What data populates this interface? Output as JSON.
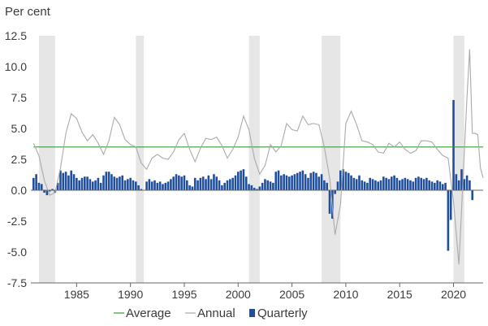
{
  "chart_data": {
    "type": "bar",
    "unit_label": "Per cent",
    "xlim": [
      1980.75,
      2022.75
    ],
    "ylim": [
      -7.5,
      12.5
    ],
    "y_ticks": [
      12.5,
      10.0,
      7.5,
      5.0,
      2.5,
      0.0,
      -2.5,
      -5.0,
      -7.5
    ],
    "y_tick_labels": [
      "12.5",
      "10.0",
      "7.5",
      "5.0",
      "2.5",
      "0.0",
      "-2.5",
      "-5.0",
      "-7.5"
    ],
    "x_ticks": [
      1985,
      1990,
      1995,
      2000,
      2005,
      2010,
      2015,
      2020
    ],
    "x_tick_labels": [
      "1985",
      "1990",
      "1995",
      "2000",
      "2005",
      "2010",
      "2015",
      "2020"
    ],
    "grid": false,
    "legend_position": "bottom",
    "colors": {
      "average": "#3a9a3a",
      "annual": "#aaaaaa",
      "quarterly": "#1f4e9c",
      "recession": "#e6e6e6",
      "axis": "#666666"
    },
    "recessions": [
      [
        1981.5,
        1983.0
      ],
      [
        1990.5,
        1991.25
      ],
      [
        2001.0,
        2002.0
      ],
      [
        2007.75,
        2009.5
      ],
      [
        2020.0,
        2021.0
      ]
    ],
    "series": [
      {
        "name": "Average",
        "type": "hline",
        "value": 3.5
      },
      {
        "name": "Annual",
        "type": "line",
        "points": [
          [
            1981.0,
            3.8
          ],
          [
            1981.5,
            2.8
          ],
          [
            1982.0,
            0.8
          ],
          [
            1982.5,
            -0.4
          ],
          [
            1983.0,
            -0.2
          ],
          [
            1983.5,
            1.8
          ],
          [
            1984.0,
            4.6
          ],
          [
            1984.5,
            6.2
          ],
          [
            1985.0,
            5.8
          ],
          [
            1985.5,
            4.7
          ],
          [
            1986.0,
            4.0
          ],
          [
            1986.5,
            4.5
          ],
          [
            1987.0,
            3.8
          ],
          [
            1987.5,
            2.9
          ],
          [
            1988.0,
            4.0
          ],
          [
            1988.5,
            5.9
          ],
          [
            1989.0,
            5.3
          ],
          [
            1989.5,
            4.1
          ],
          [
            1990.0,
            3.7
          ],
          [
            1990.5,
            3.5
          ],
          [
            1991.0,
            2.2
          ],
          [
            1991.5,
            1.7
          ],
          [
            1992.0,
            2.6
          ],
          [
            1992.5,
            2.9
          ],
          [
            1993.0,
            2.6
          ],
          [
            1993.5,
            2.5
          ],
          [
            1994.0,
            3.1
          ],
          [
            1994.5,
            4.1
          ],
          [
            1995.0,
            4.6
          ],
          [
            1995.5,
            3.3
          ],
          [
            1996.0,
            2.3
          ],
          [
            1996.5,
            3.4
          ],
          [
            1997.0,
            4.2
          ],
          [
            1997.5,
            4.1
          ],
          [
            1998.0,
            4.3
          ],
          [
            1998.5,
            3.6
          ],
          [
            1999.0,
            2.6
          ],
          [
            1999.5,
            3.3
          ],
          [
            2000.0,
            4.3
          ],
          [
            2000.5,
            6.0
          ],
          [
            2001.0,
            4.9
          ],
          [
            2001.5,
            2.6
          ],
          [
            2002.0,
            1.3
          ],
          [
            2002.5,
            2.0
          ],
          [
            2003.0,
            3.7
          ],
          [
            2003.5,
            3.1
          ],
          [
            2004.0,
            3.6
          ],
          [
            2004.5,
            5.4
          ],
          [
            2005.0,
            4.9
          ],
          [
            2005.5,
            4.8
          ],
          [
            2006.0,
            6.0
          ],
          [
            2006.5,
            5.3
          ],
          [
            2007.0,
            5.4
          ],
          [
            2007.5,
            5.3
          ],
          [
            2008.0,
            3.5
          ],
          [
            2008.5,
            1.0
          ],
          [
            2009.0,
            -3.6
          ],
          [
            2009.5,
            -1.2
          ],
          [
            2010.0,
            5.4
          ],
          [
            2010.5,
            6.4
          ],
          [
            2011.0,
            5.3
          ],
          [
            2011.5,
            4.0
          ],
          [
            2012.0,
            3.9
          ],
          [
            2012.5,
            3.7
          ],
          [
            2013.0,
            3.1
          ],
          [
            2013.5,
            3.0
          ],
          [
            2014.0,
            3.8
          ],
          [
            2014.5,
            3.5
          ],
          [
            2015.0,
            3.9
          ],
          [
            2015.5,
            3.3
          ],
          [
            2016.0,
            3.0
          ],
          [
            2016.5,
            3.2
          ],
          [
            2017.0,
            4.0
          ],
          [
            2017.5,
            4.0
          ],
          [
            2018.0,
            3.9
          ],
          [
            2018.5,
            3.3
          ],
          [
            2019.0,
            2.8
          ],
          [
            2019.5,
            2.6
          ],
          [
            2020.0,
            -0.9
          ],
          [
            2020.5,
            -6.0
          ],
          [
            2021.0,
            3.0
          ],
          [
            2021.25,
            7.5
          ],
          [
            2021.5,
            11.4
          ],
          [
            2021.75,
            4.6
          ],
          [
            2022.0,
            4.6
          ],
          [
            2022.25,
            4.5
          ],
          [
            2022.5,
            1.8
          ],
          [
            2022.75,
            1.0
          ]
        ]
      },
      {
        "name": "Quarterly",
        "type": "bar",
        "start": 1981.0,
        "step": 0.25,
        "values": [
          1.0,
          1.3,
          0.6,
          0.5,
          -0.2,
          -0.4,
          -0.1,
          0.1,
          -0.2,
          0.6,
          1.6,
          1.4,
          1.5,
          1.2,
          1.6,
          1.3,
          1.0,
          0.8,
          1.0,
          1.1,
          1.1,
          0.9,
          0.7,
          0.8,
          1.0,
          0.6,
          1.2,
          1.5,
          1.5,
          1.3,
          1.1,
          1.0,
          1.1,
          1.2,
          0.8,
          0.9,
          1.0,
          0.8,
          0.7,
          0.4,
          0.1,
          0.0,
          0.7,
          0.9,
          0.7,
          0.8,
          0.6,
          0.7,
          0.5,
          0.6,
          0.7,
          0.9,
          1.1,
          1.3,
          1.2,
          1.1,
          1.2,
          0.8,
          0.4,
          0.3,
          1.0,
          0.8,
          1.0,
          1.1,
          0.9,
          1.2,
          0.9,
          1.3,
          1.1,
          0.8,
          0.4,
          0.6,
          0.8,
          0.9,
          1.0,
          1.2,
          1.5,
          1.6,
          1.7,
          1.1,
          0.5,
          0.4,
          0.2,
          0.1,
          0.3,
          0.6,
          0.9,
          0.8,
          0.7,
          0.6,
          1.5,
          1.6,
          1.2,
          1.3,
          1.2,
          1.1,
          1.2,
          1.3,
          1.4,
          1.5,
          1.6,
          1.3,
          1.0,
          1.4,
          1.5,
          1.4,
          1.1,
          1.3,
          0.8,
          0.6,
          -1.9,
          -2.3,
          -0.3,
          0.7,
          1.6,
          1.7,
          1.5,
          1.4,
          1.2,
          1.0,
          0.9,
          1.2,
          0.8,
          0.7,
          0.6,
          1.0,
          0.9,
          0.8,
          0.7,
          0.8,
          1.1,
          1.0,
          0.9,
          1.1,
          1.2,
          1.0,
          0.8,
          0.9,
          1.0,
          0.9,
          0.8,
          0.7,
          1.0,
          1.1,
          1.0,
          0.9,
          1.0,
          0.8,
          0.7,
          0.6,
          0.8,
          0.7,
          0.5,
          0.6,
          -4.9,
          -2.4,
          7.3,
          1.3,
          0.8,
          1.7,
          0.9,
          1.2,
          0.8,
          -0.8
        ]
      }
    ]
  }
}
